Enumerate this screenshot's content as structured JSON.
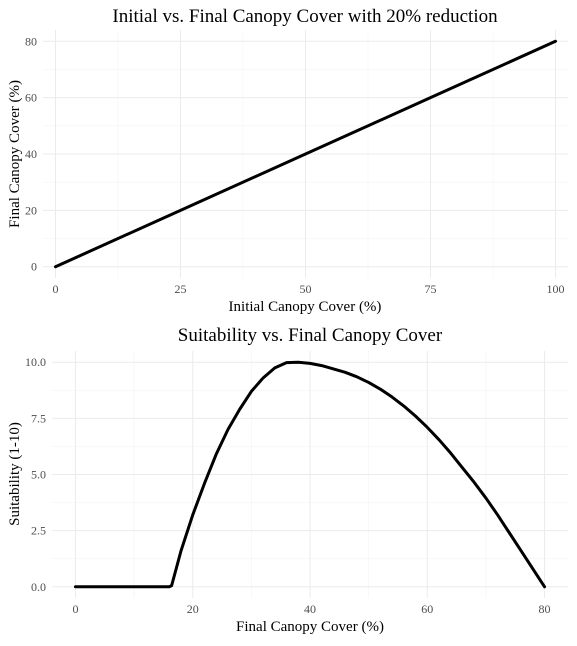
{
  "chart_data": [
    {
      "type": "line",
      "title": "Initial vs. Final Canopy Cover with 20% reduction",
      "xlabel": "Initial Canopy Cover (%)",
      "ylabel": "Final Canopy Cover (%)",
      "xlim": [
        -2.5,
        102.5
      ],
      "ylim": [
        -4,
        84
      ],
      "xticks": [
        0,
        25,
        50,
        75,
        100
      ],
      "yticks": [
        0,
        20,
        40,
        60,
        80
      ],
      "xtick_labels": [
        "0",
        "25",
        "50",
        "75",
        "100"
      ],
      "ytick_labels": [
        "0",
        "20",
        "40",
        "60",
        "80"
      ],
      "grid": true,
      "series": [
        {
          "x": [
            0,
            25,
            50,
            75,
            100
          ],
          "y": [
            0,
            20,
            40,
            60,
            80
          ],
          "color": "#000000"
        }
      ]
    },
    {
      "type": "line",
      "title": "Suitability vs. Final Canopy Cover",
      "xlabel": "Final Canopy Cover (%)",
      "ylabel": "Suitability (1-10)",
      "xlim": [
        -4,
        84
      ],
      "ylim": [
        -0.5,
        10.5
      ],
      "xticks": [
        0,
        20,
        40,
        60,
        80
      ],
      "yticks": [
        0,
        2.5,
        5,
        7.5,
        10
      ],
      "xtick_labels": [
        "0",
        "20",
        "40",
        "60",
        "80"
      ],
      "ytick_labels": [
        "0.0",
        "2.5",
        "5.0",
        "7.5",
        "10.0"
      ],
      "grid": true,
      "series": [
        {
          "x": [
            0,
            8,
            16,
            16.4,
            18,
            20,
            22,
            24,
            26,
            28,
            30,
            32,
            34,
            36,
            38,
            40,
            42,
            44,
            46,
            48,
            50,
            52,
            54,
            56,
            58,
            60,
            62,
            64,
            66,
            68,
            70,
            72,
            74,
            76,
            78,
            80
          ],
          "y": [
            0,
            0,
            0,
            0.05,
            1.6,
            3.2,
            4.6,
            5.9,
            7.0,
            7.9,
            8.7,
            9.3,
            9.75,
            9.98,
            10.0,
            9.95,
            9.85,
            9.7,
            9.55,
            9.35,
            9.1,
            8.8,
            8.45,
            8.05,
            7.6,
            7.1,
            6.55,
            5.95,
            5.3,
            4.65,
            3.95,
            3.2,
            2.4,
            1.6,
            0.8,
            0.0
          ],
          "color": "#000000"
        }
      ]
    }
  ]
}
